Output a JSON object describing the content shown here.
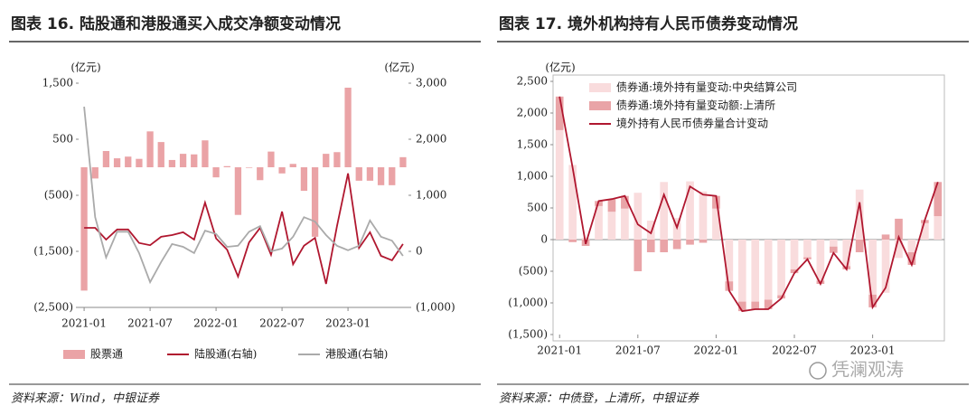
{
  "chart_data": [
    {
      "type": "combo",
      "title": "图表 16. 陆股通和港股通买入成交净额变动情况",
      "source": "资料来源：Wind，中银证券",
      "y_unit": "(亿元)",
      "y2_unit": "(亿元)",
      "legend": "bottom",
      "categories": [
        "2021-01",
        null,
        null,
        null,
        null,
        null,
        "2021-07",
        null,
        null,
        null,
        null,
        null,
        "2022-01",
        null,
        null,
        null,
        null,
        null,
        "2022-07",
        null,
        null,
        null,
        null,
        null,
        "2023-01",
        null,
        null,
        null,
        null,
        null
      ],
      "ylim": [
        -2500,
        1500
      ],
      "yticks": [
        {
          "value": 1500,
          "label": "1,500"
        },
        500,
        {
          "value": -500,
          "label": "(500)"
        },
        {
          "value": -1500,
          "label": "(1,500)"
        },
        {
          "value": -2500,
          "label": "(2,500)"
        }
      ],
      "y2lim": [
        -1000,
        3000
      ],
      "y2ticks": [
        {
          "value": 3000,
          "label": "3,000"
        },
        {
          "value": 2000,
          "label": "2,000"
        },
        {
          "value": 1000,
          "label": "1,000"
        },
        0,
        {
          "value": -1000,
          "label": "(1,000)"
        }
      ],
      "series": [
        {
          "name": "股票通",
          "type": "bar",
          "color": "#eaa3a6",
          "values": [
            -2200,
            -200,
            290,
            160,
            190,
            150,
            640,
            450,
            130,
            240,
            230,
            480,
            -180,
            20,
            -850,
            -10,
            -230,
            280,
            -110,
            60,
            -420,
            -1240,
            240,
            270,
            1420,
            -240,
            -240,
            -320,
            -320,
            180
          ]
        },
        {
          "name": "陆股通(右轴)",
          "type": "line",
          "axis": "y2",
          "color": "#b0172f",
          "values": [
            420,
            420,
            210,
            390,
            390,
            150,
            110,
            260,
            290,
            340,
            210,
            870,
            230,
            30,
            -450,
            160,
            420,
            -60,
            710,
            -230,
            100,
            240,
            -580,
            450,
            1390,
            60,
            340,
            -80,
            -160,
            130
          ]
        },
        {
          "name": "港股通(右轴)",
          "type": "line",
          "axis": "y2",
          "color": "#aaaaaa",
          "values": [
            2580,
            610,
            -110,
            350,
            350,
            -30,
            -550,
            -190,
            130,
            80,
            -30,
            370,
            310,
            80,
            100,
            350,
            450,
            0,
            50,
            260,
            610,
            530,
            290,
            100,
            20,
            100,
            550,
            260,
            190,
            -80
          ]
        }
      ]
    },
    {
      "type": "combo",
      "title": "图表 17. 境外机构持有人民币债券变动情况",
      "source": "资料来源：中债登，上清所，中银证券",
      "y_unit": "(亿元)",
      "legend": "upper left",
      "frame": true,
      "categories": [
        "2021-01",
        null,
        null,
        null,
        null,
        null,
        "2021-07",
        null,
        null,
        null,
        null,
        null,
        "2022-01",
        null,
        null,
        null,
        null,
        null,
        "2022-07",
        null,
        null,
        null,
        null,
        null,
        "2023-01",
        null,
        null,
        null,
        null,
        null
      ],
      "ylim": [
        -1500,
        2500
      ],
      "yticks": [
        {
          "value": 2500,
          "label": "2,500"
        },
        {
          "value": 2000,
          "label": "2,000"
        },
        {
          "value": 1500,
          "label": "1,500"
        },
        {
          "value": 1000,
          "label": "1,000"
        },
        500,
        0,
        {
          "value": -500,
          "label": "(500)"
        },
        {
          "value": -1000,
          "label": "(1,000)"
        },
        {
          "value": -1500,
          "label": "(1,500)"
        }
      ],
      "series": [
        {
          "name": "债券通:境外持有量变动:中央结算公司",
          "type": "bar",
          "color": "#f9dcdd",
          "values": [
            1730,
            1180,
            30,
            530,
            440,
            490,
            740,
            300,
            910,
            340,
            920,
            760,
            490,
            -660,
            -980,
            -980,
            -950,
            -880,
            -470,
            -280,
            -650,
            -110,
            -420,
            790,
            -870,
            -840,
            -290,
            -200,
            260,
            370
          ]
        },
        {
          "name": "债券通:境外持有量变动额:上清所",
          "type": "bar",
          "color": "#e9a4a7",
          "values": [
            530,
            -40,
            -100,
            80,
            200,
            200,
            -500,
            -200,
            -200,
            -150,
            -80,
            -50,
            200,
            -150,
            -150,
            -120,
            -150,
            -50,
            -60,
            -30,
            -50,
            -100,
            -50,
            -200,
            -200,
            80,
            330,
            -200,
            50,
            540
          ]
        },
        {
          "name": "境外持有人民币债券量合计变动",
          "type": "line",
          "color": "#b0172f",
          "values": [
            2260,
            1140,
            -70,
            610,
            640,
            690,
            240,
            100,
            710,
            190,
            840,
            710,
            690,
            -810,
            -1130,
            -1100,
            -1100,
            -930,
            -530,
            -310,
            -700,
            -210,
            -470,
            590,
            -1070,
            -760,
            40,
            -400,
            310,
            910
          ]
        }
      ]
    }
  ],
  "watermark": "凭澜观涛"
}
